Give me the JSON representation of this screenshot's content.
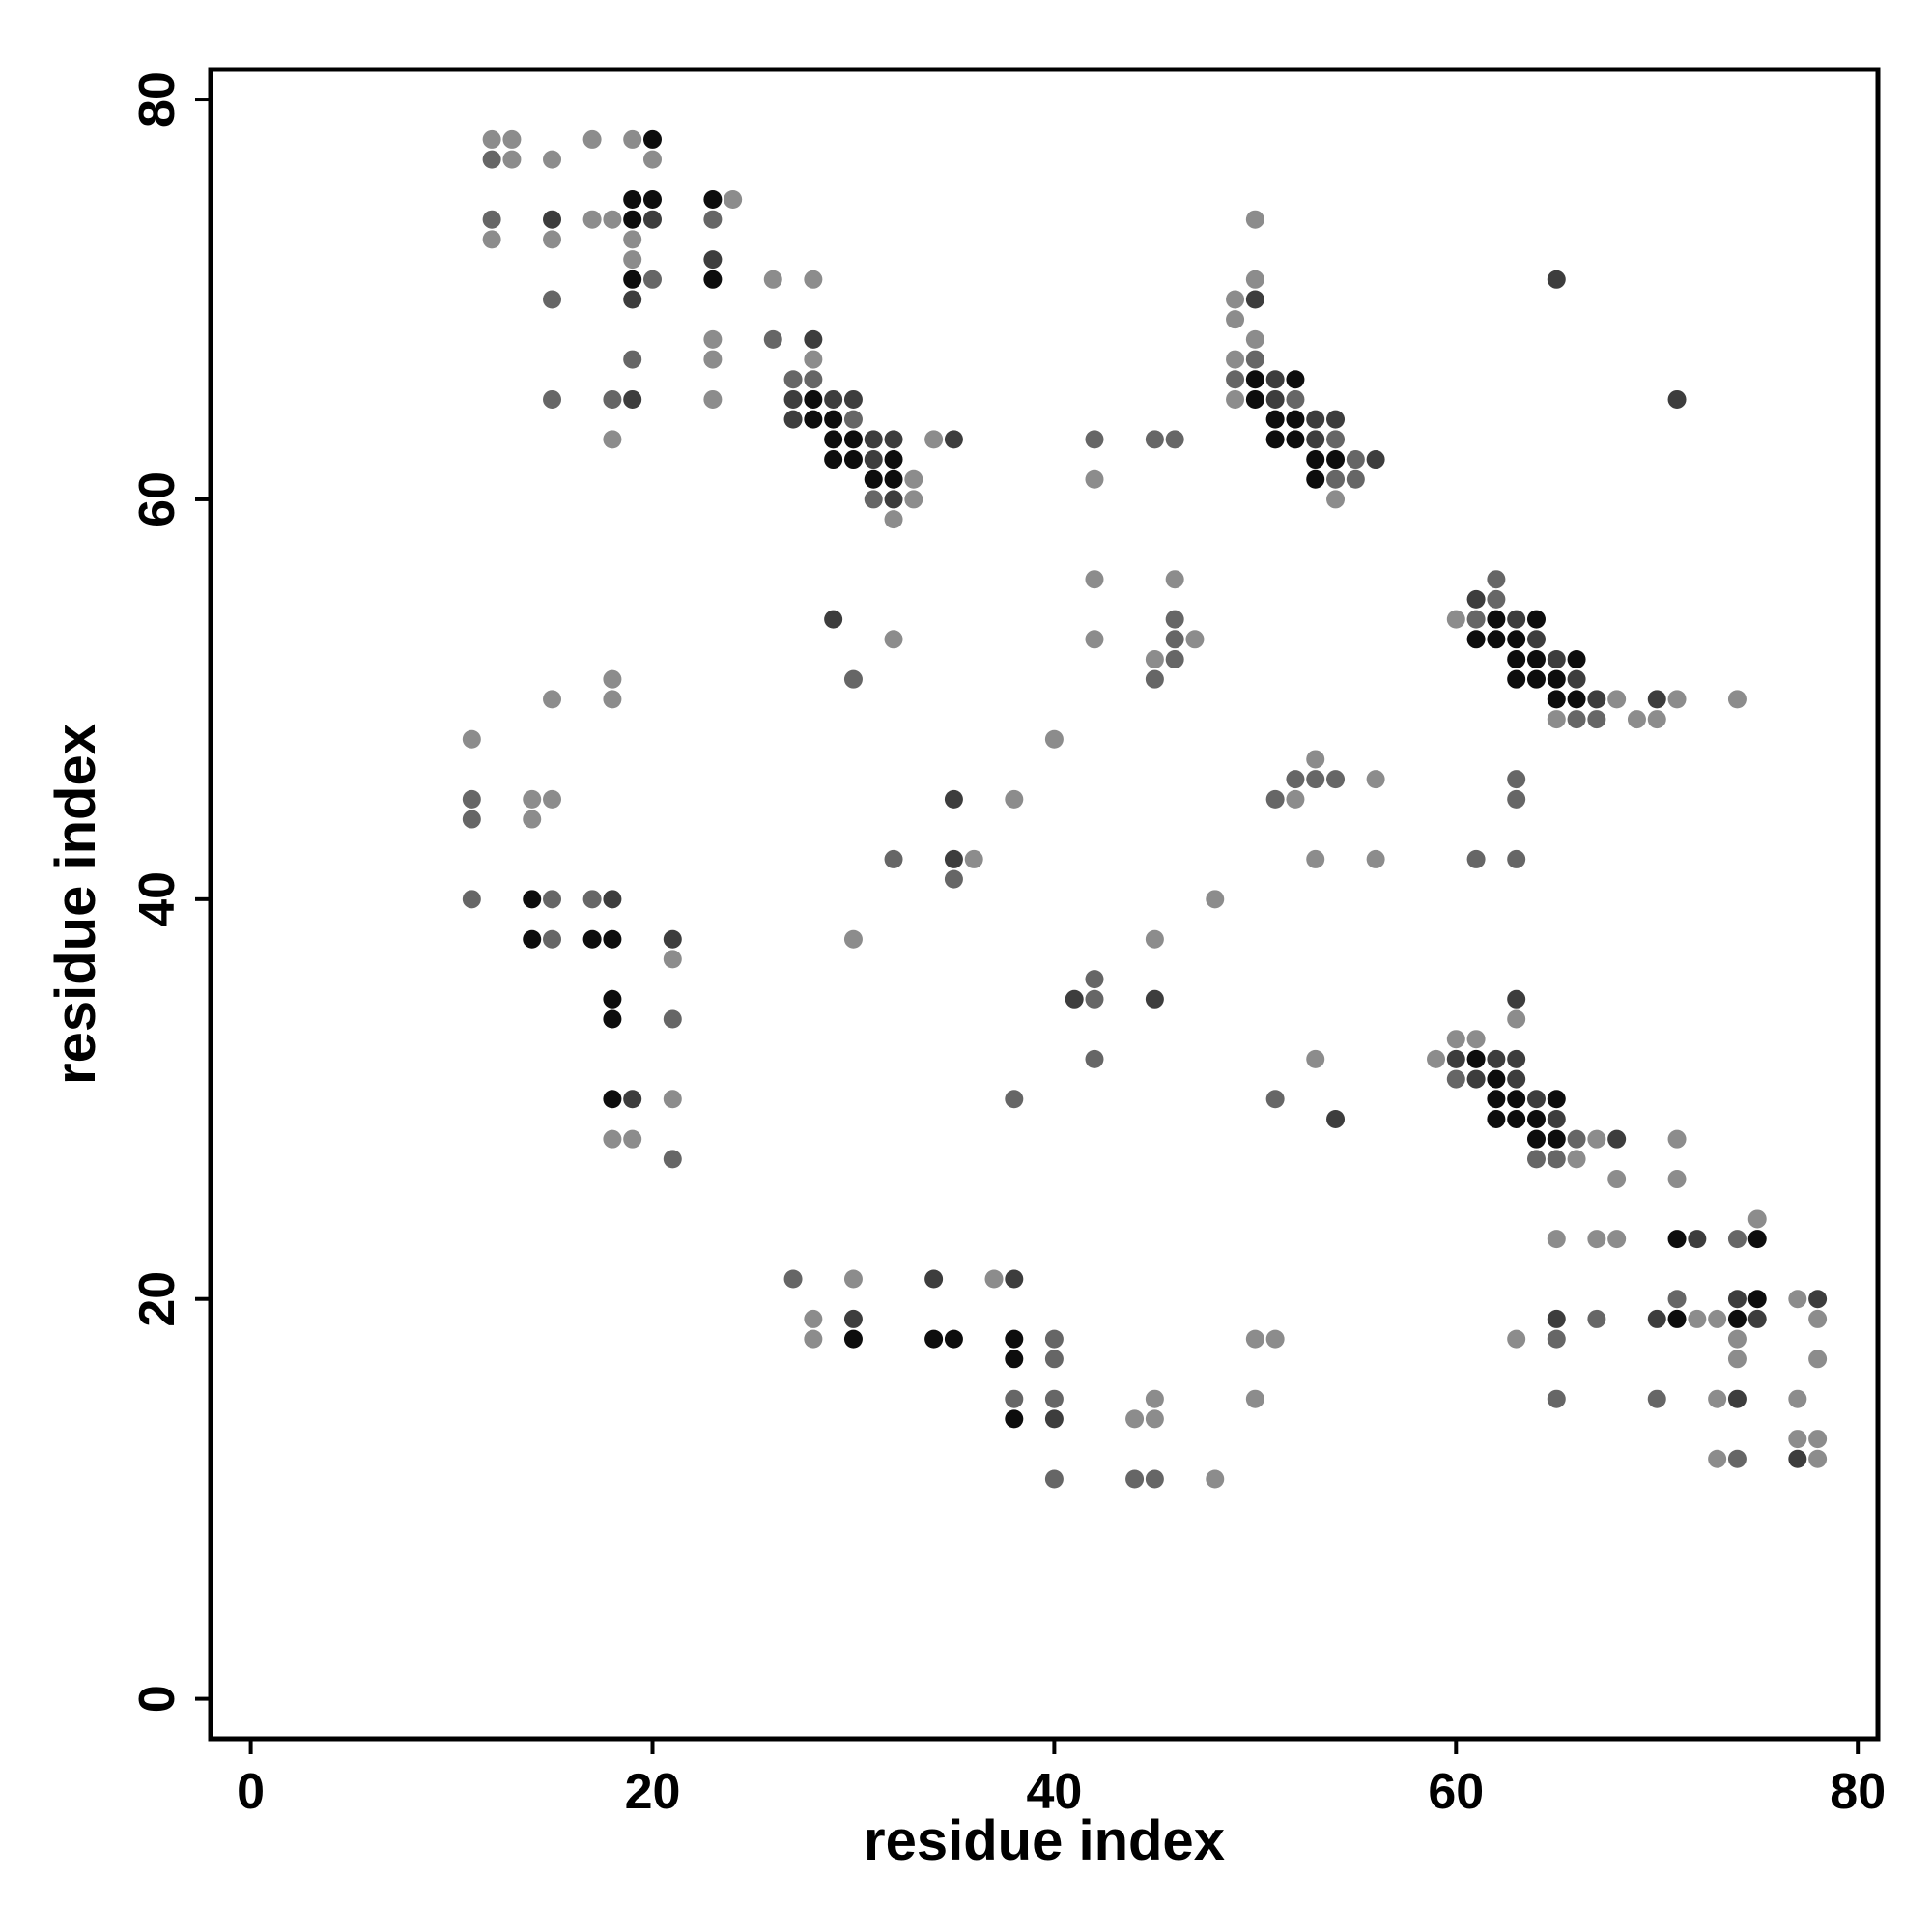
{
  "chart_data": {
    "type": "scatter",
    "title": "",
    "xlabel": "residue index",
    "ylabel": "residue index",
    "xlim": [
      -2,
      81
    ],
    "ylim": [
      -2,
      81.5
    ],
    "xticks": [
      0,
      20,
      40,
      60,
      80
    ],
    "yticks": [
      0,
      20,
      40,
      60,
      80
    ],
    "grid": false,
    "legend": "none",
    "marker": "filled-circle",
    "shade_scale": "grayscale (lighter = weaker, darker = stronger)",
    "shade_colors": {
      "1": "#8c8c8c",
      "2": "#666666",
      "3": "#3d3d3d",
      "4": "#0d0d0d"
    },
    "points": [
      [
        12,
        78,
        1
      ],
      [
        13,
        78,
        1
      ],
      [
        17,
        78,
        1
      ],
      [
        19,
        78,
        1
      ],
      [
        20,
        78,
        4
      ],
      [
        12,
        77,
        2
      ],
      [
        13,
        77,
        1
      ],
      [
        15,
        77,
        1
      ],
      [
        20,
        77,
        1
      ],
      [
        19,
        75,
        4
      ],
      [
        20,
        75,
        4
      ],
      [
        23,
        75,
        4
      ],
      [
        24,
        75,
        1
      ],
      [
        12,
        74,
        2
      ],
      [
        15,
        74,
        3
      ],
      [
        17,
        74,
        1
      ],
      [
        18,
        74,
        1
      ],
      [
        19,
        74,
        4
      ],
      [
        20,
        74,
        3
      ],
      [
        23,
        74,
        2
      ],
      [
        50,
        74,
        1
      ],
      [
        12,
        73,
        1
      ],
      [
        15,
        73,
        1
      ],
      [
        19,
        73,
        1
      ],
      [
        19,
        72,
        1
      ],
      [
        23,
        72,
        3
      ],
      [
        19,
        71,
        4
      ],
      [
        20,
        71,
        2
      ],
      [
        23,
        71,
        4
      ],
      [
        26,
        71,
        1
      ],
      [
        28,
        71,
        1
      ],
      [
        50,
        71,
        1
      ],
      [
        65,
        71,
        3
      ],
      [
        15,
        70,
        2
      ],
      [
        19,
        70,
        3
      ],
      [
        49,
        70,
        1
      ],
      [
        50,
        70,
        3
      ],
      [
        49,
        69,
        1
      ],
      [
        23,
        68,
        1
      ],
      [
        26,
        68,
        2
      ],
      [
        28,
        68,
        3
      ],
      [
        50,
        68,
        1
      ],
      [
        23,
        67,
        1
      ],
      [
        19,
        67,
        2
      ],
      [
        28,
        67,
        1
      ],
      [
        49,
        67,
        1
      ],
      [
        50,
        67,
        2
      ],
      [
        27,
        66,
        2
      ],
      [
        28,
        66,
        2
      ],
      [
        49,
        66,
        2
      ],
      [
        50,
        66,
        4
      ],
      [
        51,
        66,
        3
      ],
      [
        52,
        66,
        4
      ],
      [
        15,
        65,
        2
      ],
      [
        18,
        65,
        2
      ],
      [
        19,
        65,
        3
      ],
      [
        23,
        65,
        1
      ],
      [
        27,
        65,
        3
      ],
      [
        28,
        65,
        4
      ],
      [
        29,
        65,
        3
      ],
      [
        30,
        65,
        3
      ],
      [
        49,
        65,
        1
      ],
      [
        50,
        65,
        4
      ],
      [
        51,
        65,
        3
      ],
      [
        52,
        65,
        2
      ],
      [
        71,
        65,
        3
      ],
      [
        27,
        64,
        3
      ],
      [
        28,
        64,
        4
      ],
      [
        29,
        64,
        4
      ],
      [
        30,
        64,
        2
      ],
      [
        51,
        64,
        4
      ],
      [
        52,
        64,
        4
      ],
      [
        53,
        64,
        3
      ],
      [
        54,
        64,
        3
      ],
      [
        18,
        63,
        1
      ],
      [
        29,
        63,
        4
      ],
      [
        30,
        63,
        4
      ],
      [
        31,
        63,
        3
      ],
      [
        32,
        63,
        3
      ],
      [
        34,
        63,
        1
      ],
      [
        35,
        63,
        3
      ],
      [
        42,
        63,
        2
      ],
      [
        45,
        63,
        2
      ],
      [
        46,
        63,
        2
      ],
      [
        51,
        63,
        4
      ],
      [
        52,
        63,
        4
      ],
      [
        53,
        63,
        3
      ],
      [
        54,
        63,
        2
      ],
      [
        29,
        62,
        4
      ],
      [
        30,
        62,
        4
      ],
      [
        31,
        62,
        3
      ],
      [
        32,
        62,
        4
      ],
      [
        53,
        62,
        4
      ],
      [
        54,
        62,
        4
      ],
      [
        55,
        62,
        2
      ],
      [
        56,
        62,
        3
      ],
      [
        31,
        61,
        4
      ],
      [
        32,
        61,
        4
      ],
      [
        33,
        61,
        1
      ],
      [
        42,
        61,
        1
      ],
      [
        53,
        61,
        4
      ],
      [
        54,
        61,
        2
      ],
      [
        55,
        61,
        2
      ],
      [
        31,
        60,
        2
      ],
      [
        32,
        60,
        3
      ],
      [
        33,
        60,
        1
      ],
      [
        54,
        60,
        1
      ],
      [
        32,
        59,
        1
      ],
      [
        42,
        56,
        1
      ],
      [
        46,
        56,
        1
      ],
      [
        62,
        56,
        2
      ],
      [
        61,
        55,
        3
      ],
      [
        62,
        55,
        2
      ],
      [
        29,
        54,
        3
      ],
      [
        46,
        54,
        2
      ],
      [
        60,
        54,
        1
      ],
      [
        61,
        54,
        2
      ],
      [
        62,
        54,
        4
      ],
      [
        63,
        54,
        3
      ],
      [
        64,
        54,
        4
      ],
      [
        32,
        53,
        1
      ],
      [
        42,
        53,
        1
      ],
      [
        46,
        53,
        2
      ],
      [
        47,
        53,
        1
      ],
      [
        61,
        53,
        4
      ],
      [
        62,
        53,
        4
      ],
      [
        63,
        53,
        4
      ],
      [
        64,
        53,
        3
      ],
      [
        45,
        52,
        1
      ],
      [
        46,
        52,
        2
      ],
      [
        63,
        52,
        4
      ],
      [
        64,
        52,
        4
      ],
      [
        65,
        52,
        3
      ],
      [
        66,
        52,
        4
      ],
      [
        18,
        51,
        1
      ],
      [
        30,
        51,
        2
      ],
      [
        45,
        51,
        2
      ],
      [
        63,
        51,
        4
      ],
      [
        64,
        51,
        4
      ],
      [
        65,
        51,
        4
      ],
      [
        66,
        51,
        3
      ],
      [
        15,
        50,
        1
      ],
      [
        18,
        50,
        1
      ],
      [
        65,
        50,
        4
      ],
      [
        66,
        50,
        4
      ],
      [
        67,
        50,
        3
      ],
      [
        68,
        50,
        1
      ],
      [
        70,
        50,
        3
      ],
      [
        71,
        50,
        1
      ],
      [
        74,
        50,
        1
      ],
      [
        65,
        49,
        1
      ],
      [
        66,
        49,
        2
      ],
      [
        67,
        49,
        2
      ],
      [
        69,
        49,
        1
      ],
      [
        70,
        49,
        1
      ],
      [
        11,
        48,
        1
      ],
      [
        40,
        48,
        1
      ],
      [
        53,
        47,
        1
      ],
      [
        52,
        46,
        2
      ],
      [
        53,
        46,
        2
      ],
      [
        54,
        46,
        2
      ],
      [
        56,
        46,
        1
      ],
      [
        63,
        46,
        2
      ],
      [
        11,
        45,
        2
      ],
      [
        14,
        45,
        1
      ],
      [
        15,
        45,
        1
      ],
      [
        35,
        45,
        3
      ],
      [
        38,
        45,
        1
      ],
      [
        51,
        45,
        2
      ],
      [
        52,
        45,
        1
      ],
      [
        63,
        45,
        2
      ],
      [
        11,
        44,
        2
      ],
      [
        14,
        44,
        1
      ],
      [
        32,
        42,
        2
      ],
      [
        35,
        42,
        3
      ],
      [
        36,
        42,
        1
      ],
      [
        53,
        42,
        1
      ],
      [
        56,
        42,
        1
      ],
      [
        61,
        42,
        2
      ],
      [
        63,
        42,
        2
      ],
      [
        35,
        41,
        2
      ],
      [
        11,
        40,
        2
      ],
      [
        14,
        40,
        4
      ],
      [
        15,
        40,
        2
      ],
      [
        17,
        40,
        2
      ],
      [
        18,
        40,
        3
      ],
      [
        48,
        40,
        1
      ],
      [
        14,
        38,
        4
      ],
      [
        15,
        38,
        2
      ],
      [
        17,
        38,
        4
      ],
      [
        18,
        38,
        4
      ],
      [
        21,
        38,
        3
      ],
      [
        30,
        38,
        1
      ],
      [
        45,
        38,
        1
      ],
      [
        21,
        37,
        1
      ],
      [
        42,
        36,
        2
      ],
      [
        18,
        35,
        4
      ],
      [
        41,
        35,
        3
      ],
      [
        42,
        35,
        2
      ],
      [
        45,
        35,
        3
      ],
      [
        63,
        35,
        3
      ],
      [
        18,
        34,
        4
      ],
      [
        21,
        34,
        2
      ],
      [
        63,
        34,
        1
      ],
      [
        60,
        33,
        1
      ],
      [
        61,
        33,
        1
      ],
      [
        42,
        32,
        2
      ],
      [
        53,
        32,
        1
      ],
      [
        59,
        32,
        1
      ],
      [
        60,
        32,
        3
      ],
      [
        61,
        32,
        4
      ],
      [
        62,
        32,
        3
      ],
      [
        63,
        32,
        3
      ],
      [
        60,
        31,
        2
      ],
      [
        61,
        31,
        3
      ],
      [
        62,
        31,
        4
      ],
      [
        63,
        31,
        3
      ],
      [
        18,
        30,
        4
      ],
      [
        19,
        30,
        3
      ],
      [
        21,
        30,
        1
      ],
      [
        38,
        30,
        2
      ],
      [
        51,
        30,
        2
      ],
      [
        62,
        30,
        4
      ],
      [
        63,
        30,
        4
      ],
      [
        64,
        30,
        3
      ],
      [
        65,
        30,
        4
      ],
      [
        54,
        29,
        3
      ],
      [
        62,
        29,
        4
      ],
      [
        63,
        29,
        4
      ],
      [
        64,
        29,
        4
      ],
      [
        65,
        29,
        3
      ],
      [
        18,
        28,
        1
      ],
      [
        19,
        28,
        1
      ],
      [
        64,
        28,
        4
      ],
      [
        65,
        28,
        4
      ],
      [
        66,
        28,
        2
      ],
      [
        67,
        28,
        1
      ],
      [
        68,
        28,
        3
      ],
      [
        71,
        28,
        1
      ],
      [
        21,
        27,
        2
      ],
      [
        64,
        27,
        2
      ],
      [
        65,
        27,
        2
      ],
      [
        66,
        27,
        1
      ],
      [
        68,
        26,
        1
      ],
      [
        71,
        26,
        1
      ],
      [
        75,
        24,
        1
      ],
      [
        65,
        23,
        1
      ],
      [
        67,
        23,
        1
      ],
      [
        68,
        23,
        1
      ],
      [
        71,
        23,
        4
      ],
      [
        72,
        23,
        3
      ],
      [
        74,
        23,
        2
      ],
      [
        75,
        23,
        4
      ],
      [
        27,
        21,
        2
      ],
      [
        30,
        21,
        1
      ],
      [
        34,
        21,
        3
      ],
      [
        37,
        21,
        1
      ],
      [
        38,
        21,
        3
      ],
      [
        71,
        20,
        2
      ],
      [
        74,
        20,
        3
      ],
      [
        75,
        20,
        4
      ],
      [
        77,
        20,
        1
      ],
      [
        78,
        20,
        3
      ],
      [
        28,
        19,
        1
      ],
      [
        30,
        19,
        3
      ],
      [
        65,
        19,
        3
      ],
      [
        67,
        19,
        2
      ],
      [
        70,
        19,
        3
      ],
      [
        71,
        19,
        4
      ],
      [
        72,
        19,
        1
      ],
      [
        73,
        19,
        1
      ],
      [
        74,
        19,
        4
      ],
      [
        75,
        19,
        3
      ],
      [
        78,
        19,
        1
      ],
      [
        28,
        18,
        1
      ],
      [
        30,
        18,
        4
      ],
      [
        34,
        18,
        4
      ],
      [
        35,
        18,
        4
      ],
      [
        38,
        18,
        4
      ],
      [
        40,
        18,
        2
      ],
      [
        50,
        18,
        1
      ],
      [
        51,
        18,
        1
      ],
      [
        63,
        18,
        1
      ],
      [
        65,
        18,
        2
      ],
      [
        74,
        18,
        1
      ],
      [
        38,
        17,
        4
      ],
      [
        40,
        17,
        2
      ],
      [
        74,
        17,
        1
      ],
      [
        78,
        17,
        1
      ],
      [
        38,
        15,
        2
      ],
      [
        40,
        15,
        2
      ],
      [
        45,
        15,
        1
      ],
      [
        50,
        15,
        1
      ],
      [
        65,
        15,
        2
      ],
      [
        70,
        15,
        2
      ],
      [
        73,
        15,
        1
      ],
      [
        74,
        15,
        3
      ],
      [
        77,
        15,
        1
      ],
      [
        38,
        14,
        4
      ],
      [
        40,
        14,
        3
      ],
      [
        44,
        14,
        1
      ],
      [
        45,
        14,
        1
      ],
      [
        77,
        13,
        1
      ],
      [
        78,
        13,
        1
      ],
      [
        73,
        12,
        1
      ],
      [
        74,
        12,
        2
      ],
      [
        77,
        12,
        3
      ],
      [
        78,
        12,
        1
      ],
      [
        40,
        11,
        2
      ],
      [
        44,
        11,
        2
      ],
      [
        45,
        11,
        2
      ],
      [
        48,
        11,
        1
      ]
    ]
  }
}
